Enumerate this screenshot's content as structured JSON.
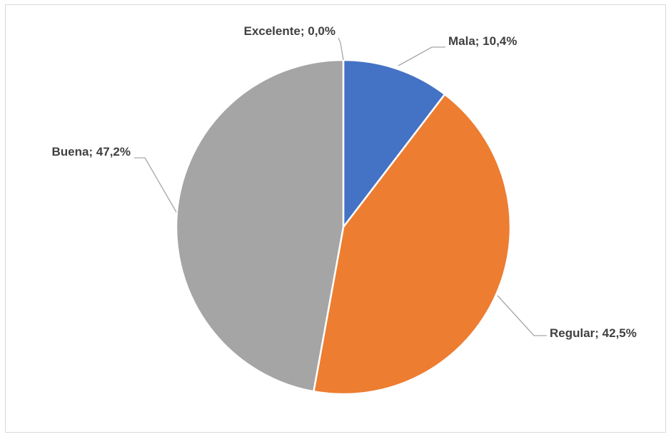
{
  "chart_data": {
    "type": "pie",
    "title": "",
    "slices": [
      {
        "name": "Mala",
        "value": 10.4,
        "label": "Mala; 10,4%",
        "color": "#4472c4"
      },
      {
        "name": "Regular",
        "value": 42.5,
        "label": "Regular; 42,5%",
        "color": "#ed7d31"
      },
      {
        "name": "Buena",
        "value": 47.2,
        "label": "Buena; 47,2%",
        "color": "#a5a5a5"
      },
      {
        "name": "Excelente",
        "value": 0.0,
        "label": "Excelente; 0,0%",
        "color": "#ffc000"
      }
    ],
    "legend": "none",
    "data_label_format": "category; percent"
  }
}
